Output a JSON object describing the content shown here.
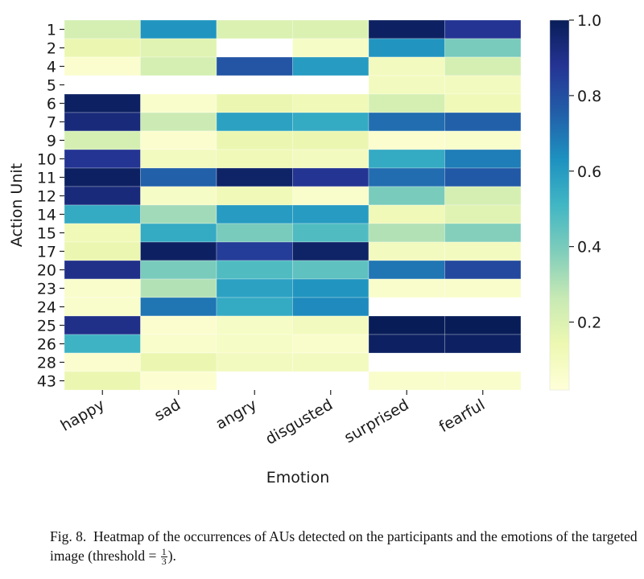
{
  "chart_data": {
    "type": "heatmap",
    "title": "",
    "xlabel": "Emotion",
    "ylabel": "Action Unit",
    "x_categories": [
      "happy",
      "sad",
      "angry",
      "disgusted",
      "surprised",
      "fearful"
    ],
    "y_categories": [
      "1",
      "2",
      "4",
      "5",
      "6",
      "7",
      "9",
      "10",
      "11",
      "12",
      "14",
      "15",
      "17",
      "20",
      "23",
      "24",
      "25",
      "26",
      "28",
      "43"
    ],
    "values": [
      [
        0.22,
        0.62,
        0.2,
        0.2,
        0.98,
        0.88
      ],
      [
        0.15,
        0.18,
        null,
        0.08,
        0.62,
        0.4
      ],
      [
        0.05,
        0.22,
        0.78,
        0.6,
        0.1,
        0.22
      ],
      [
        null,
        null,
        null,
        null,
        0.1,
        0.1
      ],
      [
        0.98,
        0.06,
        0.15,
        0.12,
        0.22,
        0.12
      ],
      [
        0.93,
        0.25,
        0.58,
        0.55,
        0.72,
        0.75
      ],
      [
        0.22,
        0.05,
        0.15,
        0.15,
        0.05,
        0.06
      ],
      [
        0.88,
        0.1,
        0.12,
        0.1,
        0.55,
        0.68
      ],
      [
        0.98,
        0.75,
        0.97,
        0.88,
        0.72,
        0.77
      ],
      [
        0.93,
        0.08,
        0.12,
        0.06,
        0.4,
        0.22
      ],
      [
        0.55,
        0.33,
        0.6,
        0.6,
        0.12,
        0.18
      ],
      [
        0.12,
        0.55,
        0.4,
        0.48,
        0.3,
        0.38
      ],
      [
        0.15,
        0.98,
        0.85,
        0.97,
        0.1,
        0.1
      ],
      [
        0.9,
        0.4,
        0.48,
        0.45,
        0.7,
        0.82
      ],
      [
        0.06,
        0.3,
        0.58,
        0.62,
        0.06,
        0.06
      ],
      [
        0.06,
        0.7,
        0.55,
        0.65,
        null,
        null
      ],
      [
        0.9,
        0.05,
        0.08,
        0.1,
        1.0,
        1.0
      ],
      [
        0.52,
        0.06,
        0.08,
        0.06,
        0.98,
        0.98
      ],
      [
        0.05,
        0.15,
        0.1,
        0.1,
        null,
        null
      ],
      [
        0.15,
        0.04,
        null,
        null,
        0.06,
        0.06
      ]
    ],
    "missing_value_color": "#ffffff",
    "colormap": "YlGnBu",
    "colormap_stops": [
      "#ffffd9",
      "#edf8b1",
      "#c7e9b4",
      "#7fcdbb",
      "#41b6c4",
      "#1d91c0",
      "#225ea8",
      "#253494",
      "#081d58"
    ],
    "vmin": 0.02,
    "vmax": 1.0,
    "colorbar": {
      "ticks": [
        0.2,
        0.4,
        0.6,
        0.8,
        1.0
      ],
      "tick_labels": [
        "0.2",
        "0.4",
        "0.6",
        "0.8",
        "1.0"
      ],
      "placement": "right"
    },
    "xtick_rotation_deg": 30,
    "grid": false
  },
  "caption": {
    "prefix": "Fig. 8.",
    "text": "Heatmap of the occurrences of AUs detected on the participants and the emotions of the targeted image (threshold = ",
    "frac_num": "1",
    "frac_den": "3",
    "suffix": ")."
  }
}
